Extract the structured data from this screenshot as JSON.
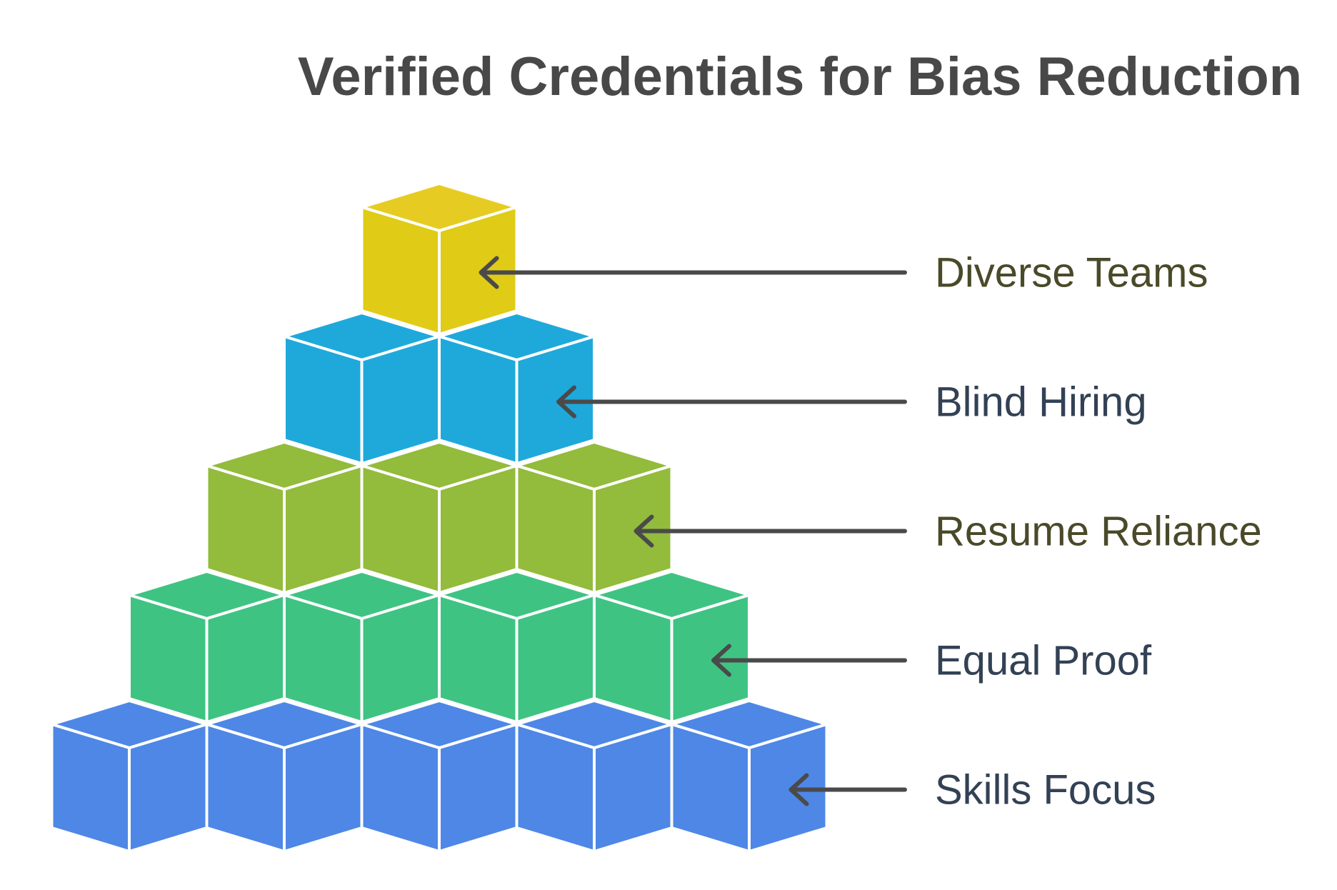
{
  "title": "Verified Credentials for Bias Reduction",
  "colors": {
    "title": "#484848",
    "arrow": "#4a4a4a",
    "label_default": "#334155",
    "label_olive": "#4a4a2a",
    "cube_edge": "#ffffff"
  },
  "levels": [
    {
      "label": "Diverse Teams",
      "cubes": 1,
      "colors": {
        "top": "#e6cc22",
        "left": "#e0cb16",
        "right": "#e0cb16"
      },
      "label_color": "#4a4a2a",
      "icon": "left-arrow-icon"
    },
    {
      "label": "Blind Hiring",
      "cubes": 2,
      "colors": {
        "top": "#1fa9db",
        "left": "#1fa9db",
        "right": "#1fa9db"
      },
      "label_color": "#334155",
      "icon": "left-arrow-icon"
    },
    {
      "label": "Resume Reliance",
      "cubes": 3,
      "colors": {
        "top": "#93bb3c",
        "left": "#93bb3c",
        "right": "#93bb3c"
      },
      "label_color": "#4a4a2a",
      "icon": "left-arrow-icon"
    },
    {
      "label": "Equal Proof",
      "cubes": 4,
      "colors": {
        "top": "#3fc383",
        "left": "#3fc383",
        "right": "#3fc383"
      },
      "label_color": "#334155",
      "icon": "left-arrow-icon"
    },
    {
      "label": "Skills Focus",
      "cubes": 5,
      "colors": {
        "top": "#4e87e6",
        "left": "#4e87e6",
        "right": "#4e87e6"
      },
      "label_color": "#334155",
      "icon": "left-arrow-icon"
    }
  ]
}
